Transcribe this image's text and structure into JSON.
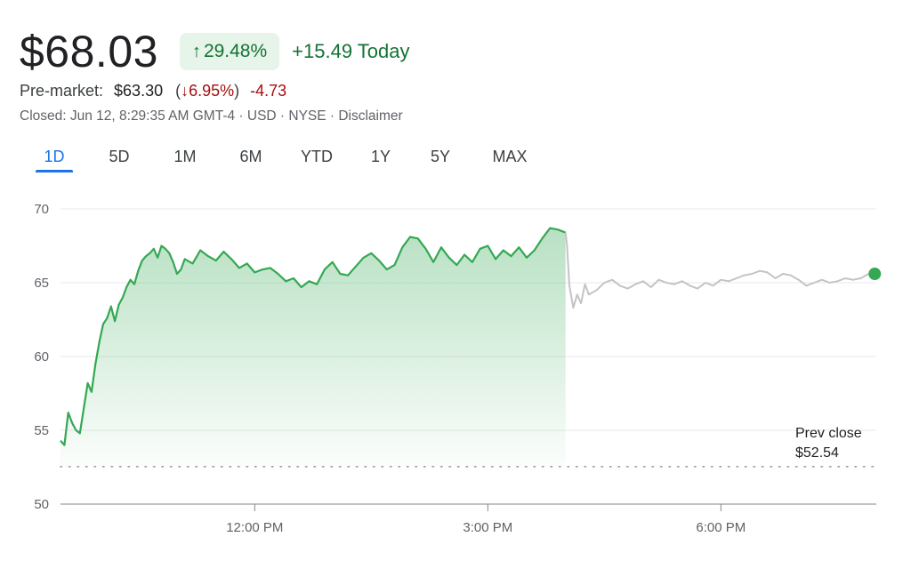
{
  "quote": {
    "price": "$68.03",
    "change_arrow": "↑",
    "change_pct": "29.48%",
    "change_today": "+15.49 Today"
  },
  "premarket": {
    "label": "Pre-market:",
    "price": "$63.30",
    "pct_arrow": "↓",
    "pct": "6.95%",
    "change": "-4.73"
  },
  "meta": {
    "text": "Closed: Jun 12, 8:29:35 AM GMT-4 · USD · NYSE · Disclaimer"
  },
  "tabs": [
    {
      "label": "1D",
      "active": true
    },
    {
      "label": "5D",
      "active": false
    },
    {
      "label": "1M",
      "active": false
    },
    {
      "label": "6M",
      "active": false
    },
    {
      "label": "YTD",
      "active": false
    },
    {
      "label": "1Y",
      "active": false
    },
    {
      "label": "5Y",
      "active": false
    },
    {
      "label": "MAX",
      "active": false
    }
  ],
  "colors": {
    "up": "#34a853",
    "up_text": "#137333",
    "down_text": "#a50e0e",
    "after_hours": "#c4c4c8",
    "active_tab": "#1a73e8",
    "grid": "#e8eaed"
  },
  "chart_data": {
    "type": "line",
    "ylim": [
      50,
      70
    ],
    "yticks": [
      "70",
      "65",
      "60",
      "55",
      "50"
    ],
    "xlim": [
      9.5,
      20
    ],
    "xticks": [
      {
        "x": 12,
        "label": "12:00 PM"
      },
      {
        "x": 15,
        "label": "3:00 PM"
      },
      {
        "x": 18,
        "label": "6:00 PM"
      }
    ],
    "prev_close": {
      "value": 52.54,
      "label_line1": "Prev close",
      "label_line2": "$52.54"
    },
    "series": [
      {
        "session": "regular",
        "x": [
          9.5,
          9.55,
          9.6,
          9.65,
          9.7,
          9.75,
          9.8,
          9.85,
          9.9,
          9.95,
          10.0,
          10.05,
          10.1,
          10.15,
          10.2,
          10.25,
          10.3,
          10.35,
          10.4,
          10.45,
          10.5,
          10.55,
          10.6,
          10.65,
          10.7,
          10.75,
          10.8,
          10.85,
          10.9,
          10.95,
          11.0,
          11.05,
          11.1,
          11.2,
          11.3,
          11.4,
          11.5,
          11.6,
          11.7,
          11.8,
          11.9,
          12.0,
          12.1,
          12.2,
          12.3,
          12.4,
          12.5,
          12.6,
          12.7,
          12.8,
          12.9,
          13.0,
          13.1,
          13.2,
          13.3,
          13.4,
          13.5,
          13.6,
          13.7,
          13.8,
          13.9,
          14.0,
          14.1,
          14.2,
          14.3,
          14.4,
          14.5,
          14.6,
          14.7,
          14.8,
          14.9,
          15.0,
          15.1,
          15.2,
          15.3,
          15.4,
          15.5,
          15.6,
          15.7,
          15.8,
          15.9,
          16.0
        ],
        "values": [
          54.3,
          54.0,
          56.2,
          55.5,
          55.0,
          54.8,
          56.5,
          58.2,
          57.6,
          59.5,
          61.0,
          62.2,
          62.6,
          63.4,
          62.4,
          63.5,
          64.0,
          64.7,
          65.2,
          64.9,
          65.8,
          66.5,
          66.8,
          67.0,
          67.3,
          66.7,
          67.5,
          67.3,
          67.0,
          66.4,
          65.6,
          65.9,
          66.6,
          66.3,
          67.2,
          66.8,
          66.5,
          67.1,
          66.6,
          66.0,
          66.3,
          65.7,
          65.9,
          66.0,
          65.6,
          65.1,
          65.3,
          64.7,
          65.1,
          64.9,
          65.9,
          66.4,
          65.6,
          65.5,
          66.1,
          66.7,
          67.0,
          66.5,
          65.9,
          66.2,
          67.4,
          68.1,
          68.0,
          67.3,
          66.4,
          67.4,
          66.7,
          66.2,
          66.9,
          66.4,
          67.3,
          67.5,
          66.6,
          67.2,
          66.8,
          67.4,
          66.7,
          67.2,
          68.0,
          68.7,
          68.6,
          68.4
        ]
      },
      {
        "session": "after-hours",
        "x": [
          16.0,
          16.02,
          16.05,
          16.1,
          16.15,
          16.2,
          16.25,
          16.3,
          16.4,
          16.5,
          16.6,
          16.7,
          16.8,
          16.9,
          17.0,
          17.1,
          17.2,
          17.3,
          17.4,
          17.5,
          17.6,
          17.7,
          17.8,
          17.9,
          18.0,
          18.1,
          18.2,
          18.3,
          18.4,
          18.5,
          18.6,
          18.7,
          18.8,
          18.9,
          19.0,
          19.1,
          19.2,
          19.3,
          19.4,
          19.5,
          19.6,
          19.7,
          19.8,
          19.9,
          19.98
        ],
        "values": [
          68.4,
          67.5,
          64.8,
          63.3,
          64.2,
          63.6,
          64.9,
          64.2,
          64.5,
          65.0,
          65.2,
          64.8,
          64.6,
          64.9,
          65.1,
          64.7,
          65.2,
          65.0,
          64.9,
          65.1,
          64.8,
          64.6,
          65.0,
          64.8,
          65.2,
          65.1,
          65.3,
          65.5,
          65.6,
          65.8,
          65.7,
          65.3,
          65.6,
          65.5,
          65.2,
          64.8,
          65.0,
          65.2,
          65.0,
          65.1,
          65.3,
          65.2,
          65.3,
          65.6,
          65.6
        ]
      }
    ]
  }
}
